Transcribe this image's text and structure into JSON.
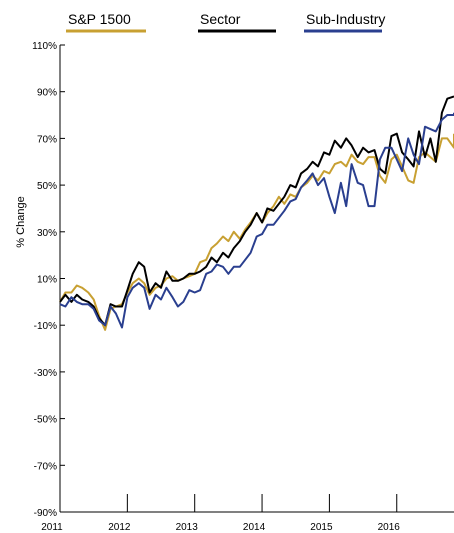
{
  "chart_data": {
    "type": "line",
    "ylabel": "% Change",
    "xlabel": "",
    "ylim": [
      -90,
      110
    ],
    "xlim": [
      2011,
      2016.85
    ],
    "y_ticks": [
      110,
      90,
      70,
      50,
      30,
      10,
      -10,
      -30,
      -50,
      -70,
      -90
    ],
    "y_tick_labels": [
      "110%",
      "90%",
      "70%",
      "50%",
      "30%",
      "10%",
      "-10%",
      "-30%",
      "-50%",
      "-70%",
      "-90%"
    ],
    "x_ticks": [
      2011,
      2012,
      2013,
      2014,
      2015,
      2016
    ],
    "x_tick_labels": [
      "2011",
      "2012",
      "2013",
      "2014",
      "2015",
      "2016"
    ],
    "grid": false,
    "legend_position": "top",
    "series": [
      {
        "name": "S&P 1500",
        "color": "#c8a032",
        "x": [
          2011,
          2011.08,
          2011.17,
          2011.25,
          2011.33,
          2011.42,
          2011.5,
          2011.58,
          2011.67,
          2011.75,
          2011.83,
          2011.92,
          2012,
          2012.08,
          2012.17,
          2012.25,
          2012.33,
          2012.42,
          2012.5,
          2012.58,
          2012.67,
          2012.75,
          2012.83,
          2012.92,
          2013,
          2013.08,
          2013.17,
          2013.25,
          2013.33,
          2013.42,
          2013.5,
          2013.58,
          2013.67,
          2013.75,
          2013.83,
          2013.92,
          2014,
          2014.08,
          2014.17,
          2014.25,
          2014.33,
          2014.42,
          2014.5,
          2014.58,
          2014.67,
          2014.75,
          2014.83,
          2014.92,
          2015,
          2015.08,
          2015.17,
          2015.25,
          2015.33,
          2015.42,
          2015.5,
          2015.58,
          2015.67,
          2015.75,
          2015.83,
          2015.92,
          2016,
          2016.08,
          2016.17,
          2016.25,
          2016.33,
          2016.42,
          2016.5,
          2016.58,
          2016.67,
          2016.75,
          2016.85
        ],
        "values": [
          0,
          4,
          4,
          7,
          6,
          4,
          1,
          -6,
          -12,
          -3,
          -2,
          -1,
          4,
          8,
          10,
          8,
          3,
          6,
          7,
          10,
          11,
          9,
          10,
          11,
          12,
          17,
          18,
          23,
          25,
          28,
          26,
          30,
          27,
          31,
          34,
          38,
          34,
          38,
          41,
          45,
          42,
          46,
          45,
          49,
          51,
          54,
          52,
          56,
          55,
          59,
          60,
          58,
          63,
          60,
          59,
          62,
          62,
          54,
          51,
          61,
          63,
          58,
          52,
          51,
          62,
          64,
          62,
          60,
          70,
          70,
          66
        ],
        "extra": [
          72
        ]
      },
      {
        "name": "Sector",
        "color": "#000000",
        "x": [
          2011,
          2011.08,
          2011.17,
          2011.25,
          2011.33,
          2011.42,
          2011.5,
          2011.58,
          2011.67,
          2011.75,
          2011.83,
          2011.92,
          2012,
          2012.08,
          2012.17,
          2012.25,
          2012.33,
          2012.42,
          2012.5,
          2012.58,
          2012.67,
          2012.75,
          2012.83,
          2012.92,
          2013,
          2013.08,
          2013.17,
          2013.25,
          2013.33,
          2013.42,
          2013.5,
          2013.58,
          2013.67,
          2013.75,
          2013.83,
          2013.92,
          2014,
          2014.08,
          2014.17,
          2014.25,
          2014.33,
          2014.42,
          2014.5,
          2014.58,
          2014.67,
          2014.75,
          2014.83,
          2014.92,
          2015,
          2015.08,
          2015.17,
          2015.25,
          2015.33,
          2015.42,
          2015.5,
          2015.58,
          2015.67,
          2015.75,
          2015.83,
          2015.92,
          2016,
          2016.08,
          2016.17,
          2016.25,
          2016.33,
          2016.42,
          2016.5,
          2016.58,
          2016.67,
          2016.75,
          2016.85
        ],
        "values": [
          0,
          3,
          0,
          3,
          1,
          0,
          -2,
          -7,
          -10,
          -1,
          -2,
          -2,
          5,
          12,
          17,
          15,
          4,
          8,
          6,
          13,
          9,
          9,
          10,
          12,
          12,
          13,
          15,
          19,
          17,
          21,
          19,
          23,
          26,
          30,
          33,
          38,
          34,
          40,
          39,
          42,
          45,
          50,
          49,
          55,
          57,
          60,
          58,
          64,
          63,
          69,
          66,
          70,
          67,
          62,
          66,
          64,
          65,
          57,
          55,
          71,
          72,
          64,
          61,
          58,
          73,
          62,
          70,
          60,
          81,
          87,
          88
        ],
        "extra": [
          88
        ]
      },
      {
        "name": "Sub-Industry",
        "color": "#2a3f8f",
        "x": [
          2011,
          2011.08,
          2011.17,
          2011.25,
          2011.33,
          2011.42,
          2011.5,
          2011.58,
          2011.67,
          2011.75,
          2011.83,
          2011.92,
          2012,
          2012.08,
          2012.17,
          2012.25,
          2012.33,
          2012.42,
          2012.5,
          2012.58,
          2012.67,
          2012.75,
          2012.83,
          2012.92,
          2013,
          2013.08,
          2013.17,
          2013.25,
          2013.33,
          2013.42,
          2013.5,
          2013.58,
          2013.67,
          2013.75,
          2013.83,
          2013.92,
          2014,
          2014.08,
          2014.17,
          2014.25,
          2014.33,
          2014.42,
          2014.5,
          2014.58,
          2014.67,
          2014.75,
          2014.83,
          2014.92,
          2015,
          2015.08,
          2015.17,
          2015.25,
          2015.33,
          2015.42,
          2015.5,
          2015.58,
          2015.67,
          2015.75,
          2015.83,
          2015.92,
          2016,
          2016.08,
          2016.17,
          2016.25,
          2016.33,
          2016.42,
          2016.5,
          2016.58,
          2016.67,
          2016.75,
          2016.85
        ],
        "values": [
          -1,
          -2,
          2,
          0,
          -1,
          -1,
          -3,
          -8,
          -10,
          -2,
          -5,
          -11,
          2,
          6,
          8,
          6,
          -3,
          3,
          1,
          6,
          2,
          -2,
          0,
          5,
          4,
          5,
          12,
          13,
          16,
          15,
          12,
          15,
          15,
          18,
          21,
          28,
          29,
          33,
          33,
          36,
          39,
          43,
          44,
          49,
          52,
          55,
          50,
          53,
          45,
          38,
          51,
          41,
          59,
          51,
          50,
          41,
          41,
          61,
          66,
          66,
          61,
          56,
          70,
          63,
          59,
          75,
          74,
          73,
          78,
          80,
          80
        ],
        "extra": [
          81
        ]
      }
    ]
  }
}
